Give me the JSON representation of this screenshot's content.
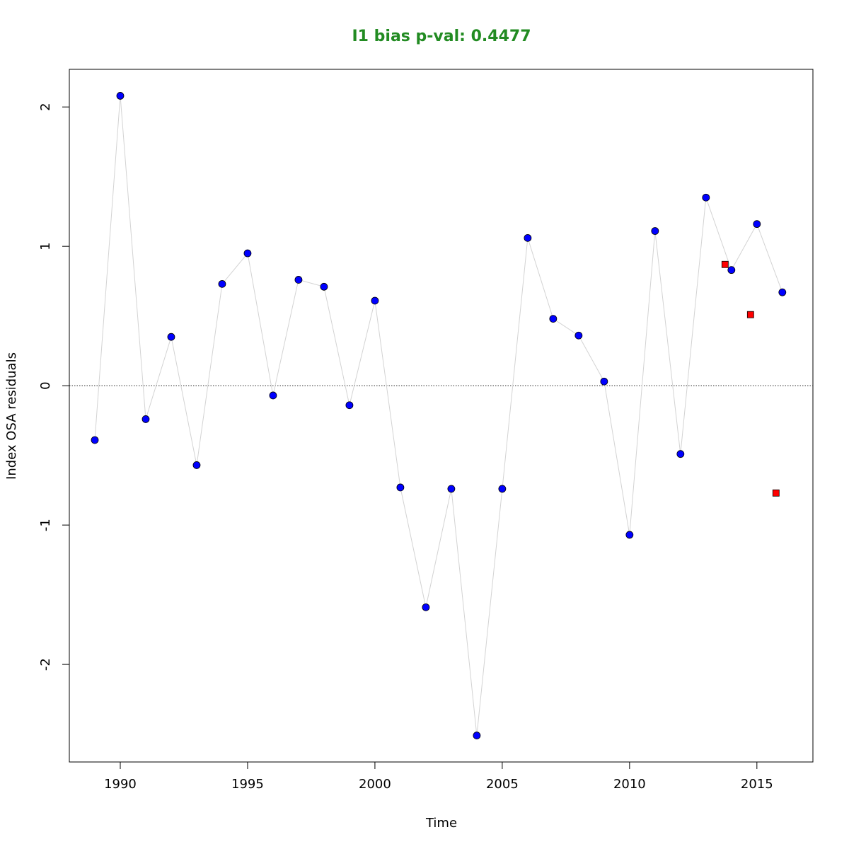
{
  "chart_data": {
    "type": "scatter",
    "title": "I1 bias p-val: 0.4477",
    "title_color": "#228B22",
    "xlabel": "Time",
    "ylabel": "Index OSA residuals",
    "xlim": [
      1988,
      2017.2
    ],
    "ylim": [
      -2.7,
      2.27
    ],
    "x_ticks": [
      1990,
      1995,
      2000,
      2005,
      2010,
      2015
    ],
    "x_tick_labels": [
      "1990",
      "1995",
      "2000",
      "2005",
      "2010",
      "2015"
    ],
    "y_ticks": [
      -2,
      -1,
      0,
      1,
      2
    ],
    "y_tick_labels": [
      "-2",
      "-1",
      "0",
      "1",
      "2"
    ],
    "reference_line": {
      "y": 0,
      "style": "dotted",
      "color": "#555555"
    },
    "grid": false,
    "series": [
      {
        "marker": "circle",
        "fill": "#0000FF",
        "line_color": "#D3D3D3",
        "x": [
          1989,
          1990,
          1991,
          1992,
          1993,
          1994,
          1995,
          1996,
          1997,
          1998,
          1999,
          2000,
          2001,
          2002,
          2003,
          2004,
          2005,
          2006,
          2007,
          2008,
          2009,
          2010,
          2011,
          2012,
          2013,
          2014,
          2015,
          2016
        ],
        "y": [
          -0.39,
          2.08,
          -0.24,
          0.35,
          -0.57,
          0.73,
          0.95,
          -0.07,
          0.76,
          0.71,
          -0.14,
          0.61,
          -0.73,
          -1.59,
          -0.74,
          -2.51,
          -0.74,
          1.06,
          0.48,
          0.36,
          0.03,
          -1.07,
          1.11,
          -0.49,
          1.35,
          0.83,
          1.16,
          0.67
        ]
      },
      {
        "marker": "square",
        "fill": "#FF0000",
        "line_color": null,
        "x": [
          2013.75,
          2014.75,
          2015.75
        ],
        "y": [
          0.87,
          0.51,
          -0.77
        ]
      }
    ]
  }
}
